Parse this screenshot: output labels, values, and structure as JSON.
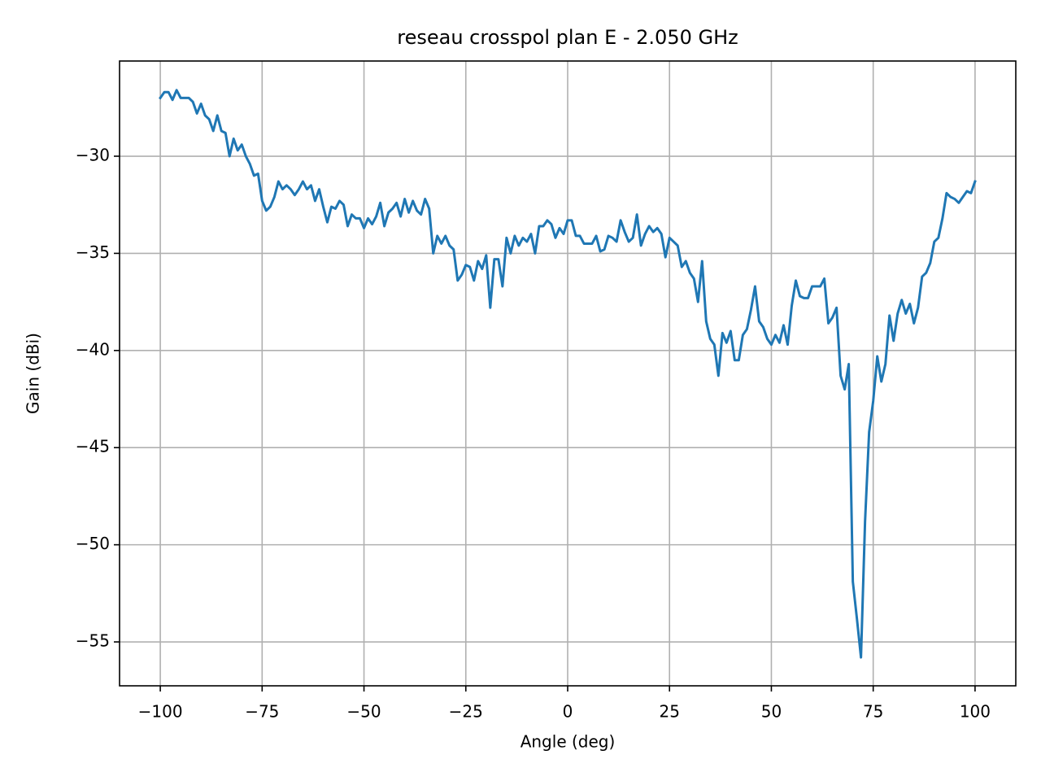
{
  "chart_data": {
    "type": "line",
    "title": "reseau crosspol plan E - 2.050 GHz",
    "x_label": "Angle (deg)",
    "y_label": "Gain (dBi)",
    "color": "#1f77b4",
    "grid": true,
    "xlim": [
      -110,
      110
    ],
    "ylim": [
      -57.26,
      -25.1
    ],
    "xticks": [
      {
        "value": -100,
        "label": "−100"
      },
      {
        "value": -75,
        "label": "−75"
      },
      {
        "value": -50,
        "label": "−50"
      },
      {
        "value": -25,
        "label": "−25"
      },
      0,
      25,
      50,
      75,
      100
    ],
    "yticks": [
      {
        "value": -55,
        "label": "−55"
      },
      {
        "value": -50,
        "label": "−50"
      },
      {
        "value": -45,
        "label": "−45"
      },
      {
        "value": -40,
        "label": "−40"
      },
      {
        "value": -35,
        "label": "−35"
      },
      {
        "value": -30,
        "label": "−30"
      }
    ],
    "x": [
      -100,
      -99,
      -98,
      -97,
      -96,
      -95,
      -94,
      -93,
      -92,
      -91,
      -90,
      -89,
      -88,
      -87,
      -86,
      -85,
      -84,
      -83,
      -82,
      -81,
      -80,
      -79,
      -78,
      -77,
      -76,
      -75,
      -74,
      -73,
      -72,
      -71,
      -70,
      -69,
      -68,
      -67,
      -66,
      -65,
      -64,
      -63,
      -62,
      -61,
      -60,
      -59,
      -58,
      -57,
      -56,
      -55,
      -54,
      -53,
      -52,
      -51,
      -50,
      -49,
      -48,
      -47,
      -46,
      -45,
      -44,
      -43,
      -42,
      -41,
      -40,
      -39,
      -38,
      -37,
      -36,
      -35,
      -34,
      -33,
      -32,
      -31,
      -30,
      -29,
      -28,
      -27,
      -26,
      -25,
      -24,
      -23,
      -22,
      -21,
      -20,
      -19,
      -18,
      -17,
      -16,
      -15,
      -14,
      -13,
      -12,
      -11,
      -10,
      -9,
      -8,
      -7,
      -6,
      -5,
      -4,
      -3,
      -2,
      -1,
      0,
      1,
      2,
      3,
      4,
      5,
      6,
      7,
      8,
      9,
      10,
      11,
      12,
      13,
      14,
      15,
      16,
      17,
      18,
      19,
      20,
      21,
      22,
      23,
      24,
      25,
      26,
      27,
      28,
      29,
      30,
      31,
      32,
      33,
      34,
      35,
      36,
      37,
      38,
      39,
      40,
      41,
      42,
      43,
      44,
      45,
      46,
      47,
      48,
      49,
      50,
      51,
      52,
      53,
      54,
      55,
      56,
      57,
      58,
      59,
      60,
      61,
      62,
      63,
      64,
      65,
      66,
      67,
      68,
      69,
      70,
      71,
      72,
      73,
      74,
      75,
      76,
      77,
      78,
      79,
      80,
      81,
      82,
      83,
      84,
      85,
      86,
      87,
      88,
      89,
      90,
      91,
      92,
      93,
      94,
      95,
      96,
      97,
      98,
      99,
      100
    ],
    "values": [
      -27.0,
      -26.7,
      -26.7,
      -27.1,
      -26.6,
      -27.0,
      -27.0,
      -27.0,
      -27.2,
      -27.8,
      -27.3,
      -27.9,
      -28.1,
      -28.7,
      -27.9,
      -28.7,
      -28.8,
      -30.0,
      -29.1,
      -29.7,
      -29.4,
      -30.0,
      -30.4,
      -31.0,
      -30.9,
      -32.3,
      -32.8,
      -32.6,
      -32.1,
      -31.3,
      -31.7,
      -31.5,
      -31.7,
      -32.0,
      -31.7,
      -31.3,
      -31.7,
      -31.5,
      -32.3,
      -31.7,
      -32.6,
      -33.4,
      -32.6,
      -32.7,
      -32.3,
      -32.5,
      -33.6,
      -33.0,
      -33.2,
      -33.2,
      -33.7,
      -33.2,
      -33.5,
      -33.1,
      -32.4,
      -33.6,
      -32.9,
      -32.7,
      -32.4,
      -33.1,
      -32.2,
      -32.9,
      -32.3,
      -32.8,
      -33.0,
      -32.2,
      -32.7,
      -35.0,
      -34.1,
      -34.5,
      -34.1,
      -34.6,
      -34.8,
      -36.4,
      -36.1,
      -35.6,
      -35.7,
      -36.4,
      -35.4,
      -35.8,
      -35.1,
      -37.8,
      -35.3,
      -35.3,
      -36.7,
      -34.2,
      -35.0,
      -34.1,
      -34.6,
      -34.2,
      -34.4,
      -34.0,
      -35.0,
      -33.6,
      -33.6,
      -33.3,
      -33.5,
      -34.2,
      -33.7,
      -34.0,
      -33.3,
      -33.3,
      -34.1,
      -34.1,
      -34.5,
      -34.5,
      -34.5,
      -34.1,
      -34.9,
      -34.8,
      -34.1,
      -34.2,
      -34.4,
      -33.3,
      -33.9,
      -34.4,
      -34.2,
      -33.0,
      -34.6,
      -34.0,
      -33.6,
      -33.9,
      -33.7,
      -34.0,
      -35.2,
      -34.2,
      -34.4,
      -34.6,
      -35.7,
      -35.4,
      -36.0,
      -36.3,
      -37.5,
      -35.4,
      -38.5,
      -39.4,
      -39.7,
      -41.3,
      -39.1,
      -39.6,
      -39.0,
      -40.5,
      -40.5,
      -39.2,
      -38.9,
      -37.9,
      -36.7,
      -38.5,
      -38.8,
      -39.4,
      -39.7,
      -39.2,
      -39.6,
      -38.7,
      -39.7,
      -37.7,
      -36.4,
      -37.2,
      -37.3,
      -37.3,
      -36.7,
      -36.7,
      -36.7,
      -36.3,
      -38.6,
      -38.3,
      -37.8,
      -41.3,
      -42.0,
      -40.7,
      -51.9,
      -53.8,
      -55.8,
      -48.8,
      -44.2,
      -42.6,
      -40.3,
      -41.6,
      -40.7,
      -38.2,
      -39.5,
      -38.1,
      -37.4,
      -38.1,
      -37.6,
      -38.6,
      -37.8,
      -36.2,
      -36.0,
      -35.5,
      -34.4,
      -34.2,
      -33.2,
      -31.9,
      -32.1,
      -32.2,
      -32.4,
      -32.1,
      -31.8,
      -31.9,
      -31.3
    ]
  }
}
